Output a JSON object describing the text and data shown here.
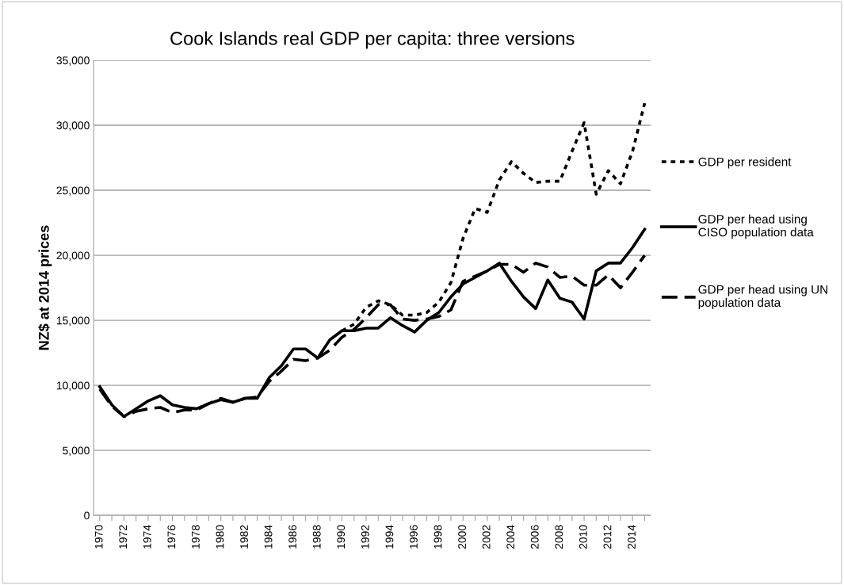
{
  "chart_data": {
    "type": "line",
    "title": "Cook Islands real GDP per capita: three versions",
    "ylabel": "NZ$ at 2014 prices",
    "categories": [
      "1970",
      null,
      "1972",
      null,
      "1974",
      null,
      "1976",
      null,
      "1978",
      null,
      "1980",
      null,
      "1982",
      null,
      "1984",
      null,
      "1986",
      null,
      "1988",
      null,
      "1990",
      null,
      "1992",
      null,
      "1994",
      null,
      "1996",
      null,
      "1998",
      null,
      "2000",
      null,
      "2002",
      null,
      "2004",
      null,
      "2006",
      null,
      "2008",
      null,
      "2010",
      null,
      "2012",
      null,
      "2014",
      null
    ],
    "series": [
      {
        "name": "GDP per resident",
        "color": "#000000",
        "line_style": "dotted",
        "values": [
          null,
          null,
          null,
          null,
          null,
          null,
          null,
          null,
          null,
          null,
          null,
          null,
          null,
          null,
          null,
          null,
          null,
          null,
          null,
          null,
          14200,
          14700,
          16000,
          16500,
          16200,
          15400,
          15400,
          15600,
          16400,
          17900,
          21300,
          23600,
          23300,
          25800,
          27200,
          26300,
          25600,
          25700,
          25700,
          28000,
          30200,
          24700,
          26500,
          25500,
          28000,
          31700
        ]
      },
      {
        "name": "GDP per head using\nCISO population data",
        "color": "#000000",
        "line_style": "solid",
        "values": [
          9900,
          8500,
          7600,
          8200,
          8800,
          9200,
          8500,
          8300,
          8200,
          8600,
          8900,
          8700,
          9000,
          9000,
          10600,
          11500,
          12800,
          12800,
          12100,
          13500,
          14200,
          14200,
          14400,
          14400,
          15200,
          14600,
          14100,
          15000,
          15600,
          16800,
          17800,
          18300,
          18800,
          19400,
          18000,
          16800,
          15900,
          18100,
          16700,
          16400,
          15100,
          18800,
          19400,
          19400,
          20600,
          22000
        ]
      },
      {
        "name": "GDP per head using UN\npopulation data",
        "color": "#000000",
        "line_style": "dashed",
        "values": [
          9700,
          8400,
          7600,
          8000,
          8200,
          8300,
          7900,
          8100,
          8100,
          8600,
          9000,
          8700,
          9000,
          9100,
          10300,
          11100,
          12000,
          11900,
          12100,
          12700,
          13700,
          14300,
          15200,
          16200,
          16200,
          15100,
          15000,
          15100,
          15300,
          15800,
          18000,
          18400,
          18800,
          19300,
          19300,
          18700,
          19400,
          19100,
          18300,
          18400,
          17700,
          17700,
          18500,
          17500,
          18700,
          20000
        ]
      }
    ],
    "ylim": [
      0,
      35000
    ],
    "yticks": [
      {
        "value": 0,
        "label": "0"
      },
      {
        "value": 5000,
        "label": "5,000"
      },
      {
        "value": 10000,
        "label": "10,000"
      },
      {
        "value": 15000,
        "label": "15,000"
      },
      {
        "value": 20000,
        "label": "20,000"
      },
      {
        "value": 25000,
        "label": "25,000"
      },
      {
        "value": 30000,
        "label": "30,000"
      },
      {
        "value": 35000,
        "label": "35,000"
      }
    ],
    "grid": "y",
    "legend": "right"
  }
}
